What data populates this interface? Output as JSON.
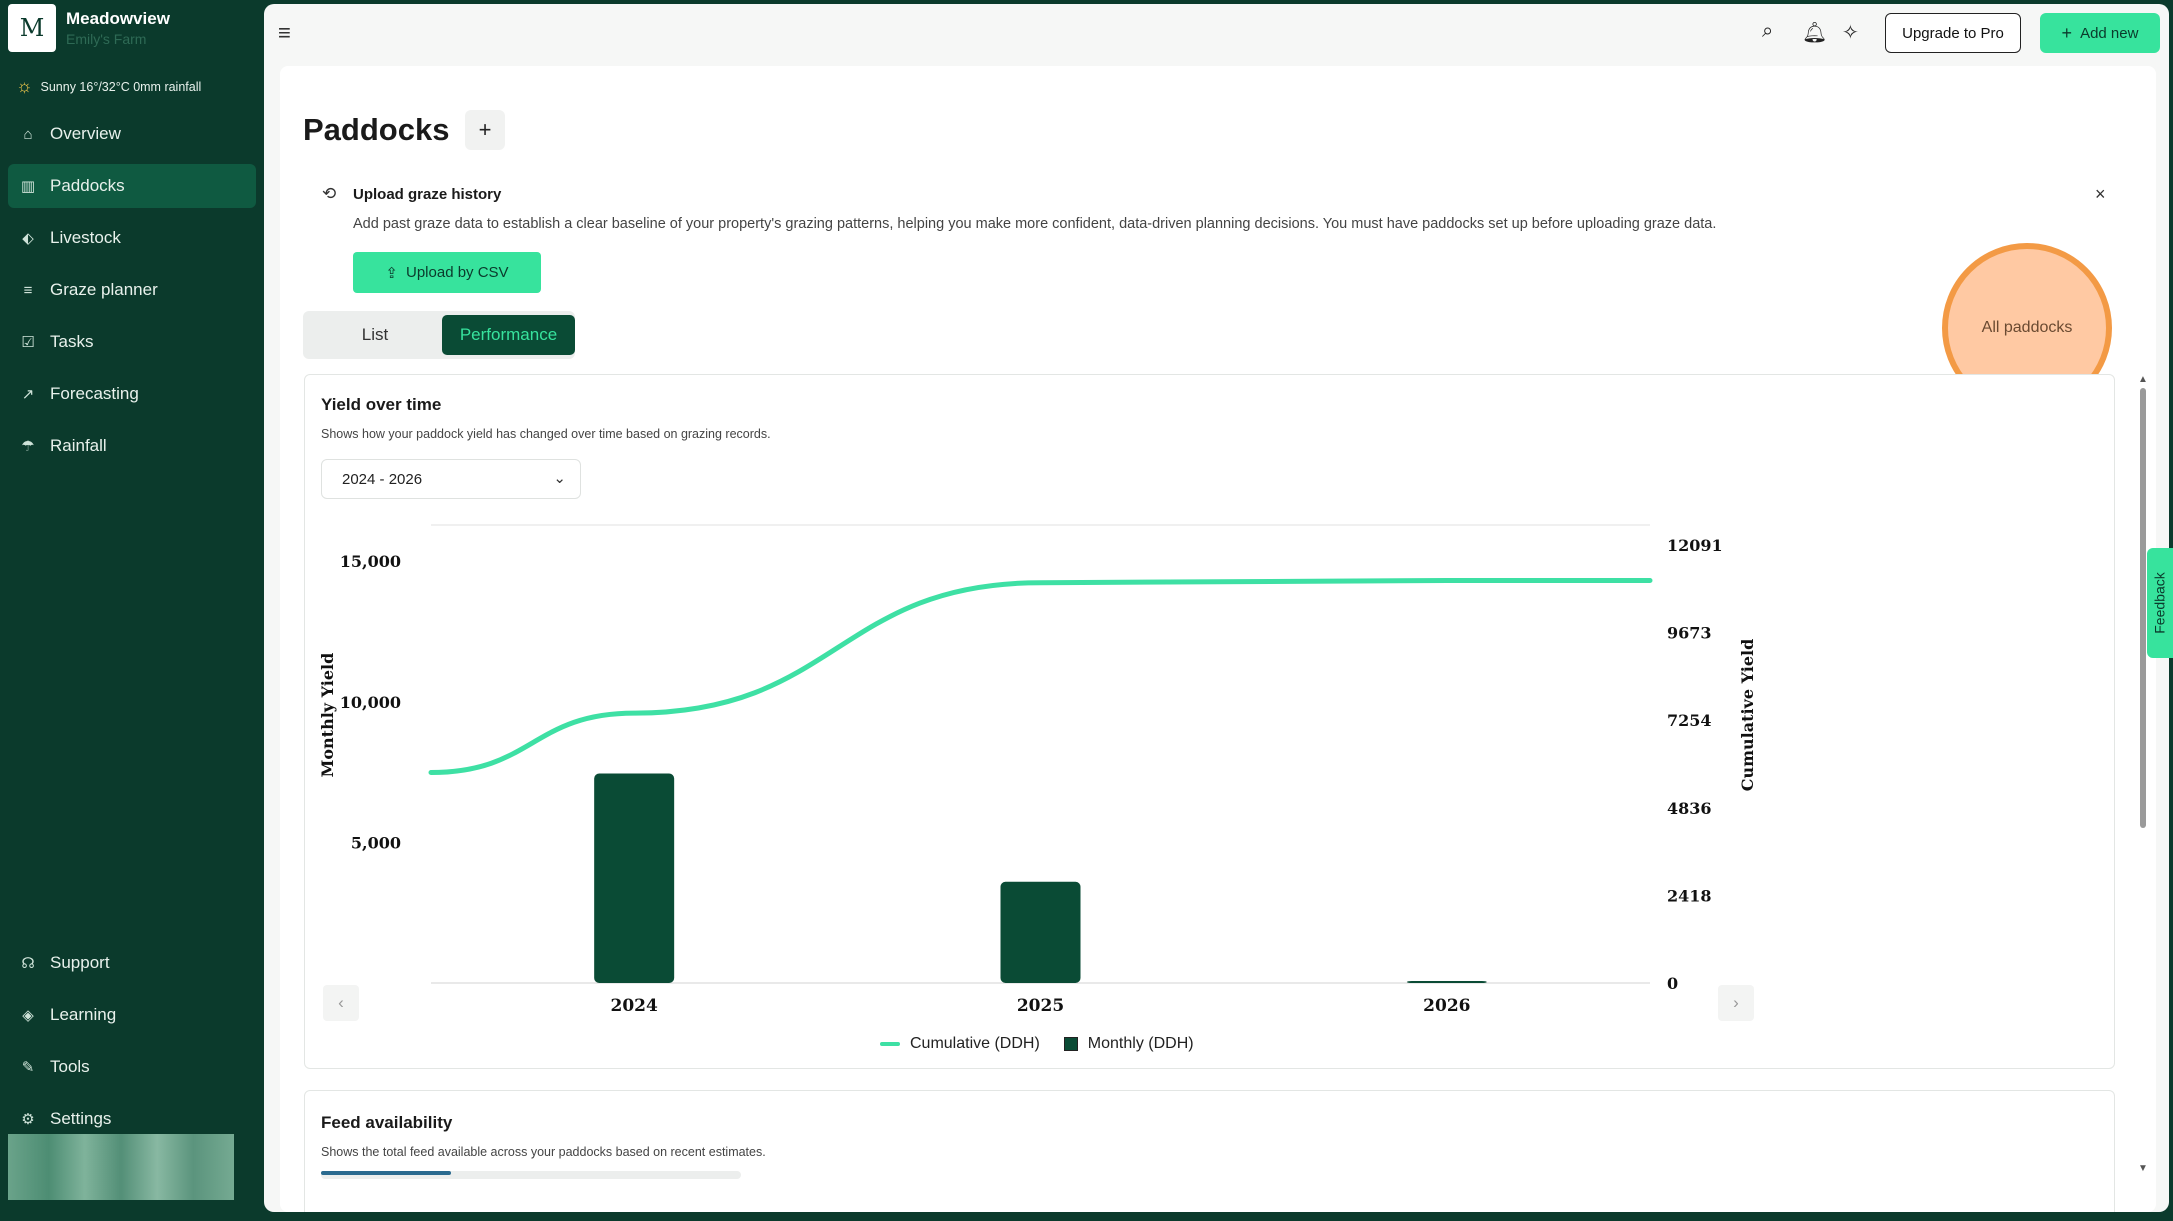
{
  "sidebar": {
    "logo_letter": "M",
    "farm_name": "Meadowview",
    "owner": "Emily's Farm",
    "weather": "Sunny 16°/32°C 0mm rainfall",
    "nav": [
      {
        "label": "Overview",
        "icon": "home-icon"
      },
      {
        "label": "Paddocks",
        "icon": "paddocks-icon",
        "active": true
      },
      {
        "label": "Livestock",
        "icon": "tag-icon"
      },
      {
        "label": "Graze planner",
        "icon": "planner-icon"
      },
      {
        "label": "Tasks",
        "icon": "checkbox-icon"
      },
      {
        "label": "Forecasting",
        "icon": "chart-icon"
      },
      {
        "label": "Rainfall",
        "icon": "rain-icon"
      }
    ],
    "bottom": [
      {
        "label": "Support",
        "icon": "headset-icon"
      },
      {
        "label": "Learning",
        "icon": "graduation-icon"
      },
      {
        "label": "Tools",
        "icon": "wrench-icon"
      },
      {
        "label": "Settings",
        "icon": "gear-icon"
      }
    ]
  },
  "topbar": {
    "upgrade_label": "Upgrade to Pro",
    "add_label": "Add new",
    "add_icon": "+"
  },
  "page": {
    "title": "Paddocks",
    "add_icon": "+"
  },
  "upload": {
    "title": "Upload graze history",
    "description": "Add past graze data to establish a clear baseline of your property's grazing patterns, helping you make more confident, data-driven planning decisions. You must have paddocks set up before uploading graze data.",
    "button_label": "Upload by CSV",
    "close": "×"
  },
  "tabs": {
    "list": "List",
    "performance": "Performance",
    "active": "performance"
  },
  "filter": {
    "all_paddocks": "All paddocks"
  },
  "yield_card": {
    "title": "Yield over time",
    "subtitle": "Shows how your paddock yield has changed over time based on grazing records.",
    "range_select": "2024 - 2026",
    "legend_cumulative": "Cumulative (DDH)",
    "legend_monthly": "Monthly (DDH)"
  },
  "chart_data": {
    "type": "bar",
    "categories": [
      "2024",
      "2025",
      "2026"
    ],
    "series": [
      {
        "name": "Monthly (DDH)",
        "type": "bar",
        "axis": "left",
        "values": [
          7450,
          3600,
          60
        ],
        "color": "#0a4b35"
      },
      {
        "name": "Cumulative (DDH)",
        "type": "line",
        "axis": "right",
        "values": [
          7450,
          11050,
          11110
        ],
        "color": "#3ee0a4"
      }
    ],
    "ylabel": "Monthly Yield",
    "ylabel_right": "Cumulative Yield",
    "left_ticks": [
      "5,000",
      "10,000",
      "15,000"
    ],
    "left_tick_values": [
      5000,
      10000,
      15000
    ],
    "ylim": [
      0,
      17000
    ],
    "right_ticks": [
      "0",
      "2418",
      "4836",
      "7254",
      "9673",
      "12091"
    ],
    "right_tick_values": [
      0,
      2418,
      4836,
      7254,
      9673,
      12091
    ],
    "ylim_right": [
      0,
      12091
    ],
    "grid": false
  },
  "feed_card": {
    "title": "Feed availability",
    "subtitle": "Shows the total feed available across your paddocks based on recent estimates."
  },
  "feedback_label": "Feedback",
  "colors": {
    "sidebar": "#0b3a2c",
    "accent": "#37e39d",
    "active_nav": "#0f5a41",
    "bar": "#0a4b35",
    "highlight": "#f39a45"
  }
}
